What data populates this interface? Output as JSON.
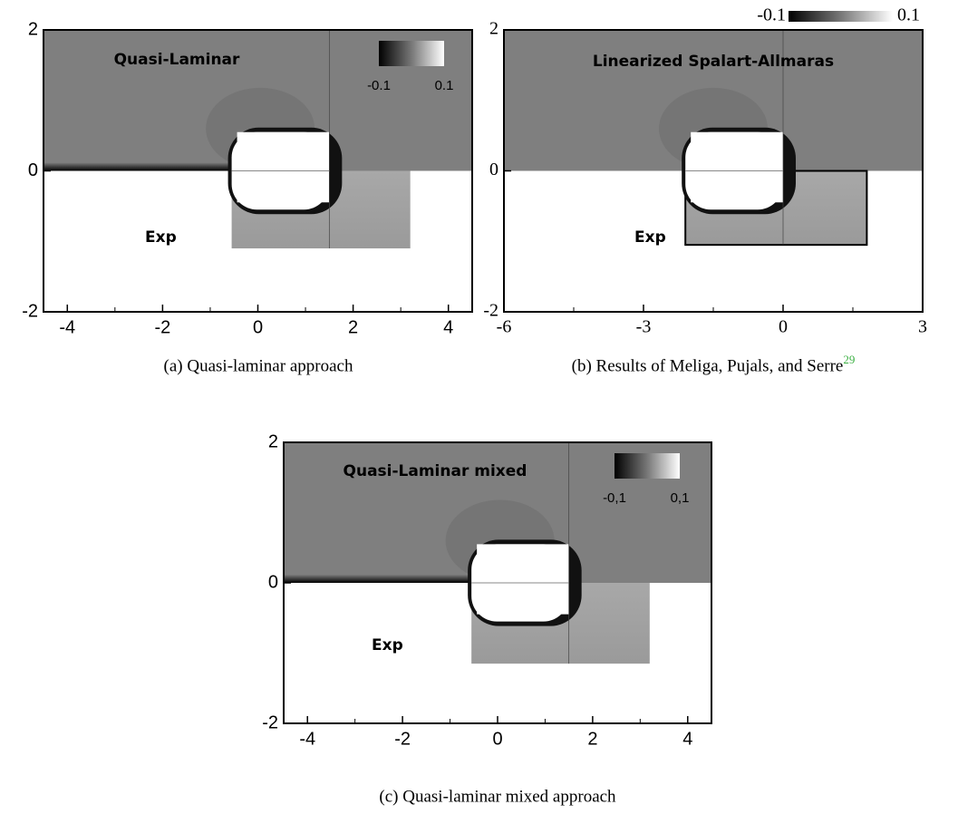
{
  "chart_data": [
    {
      "type": "contour",
      "xlim": [
        -4.5,
        4.5
      ],
      "ylim": [
        -2,
        2
      ],
      "xticks": [
        -4,
        -2,
        0,
        2,
        4
      ],
      "yticks": [
        -2,
        0,
        2
      ],
      "annotations": [
        "Quasi-Laminar",
        "Exp"
      ],
      "colorbar_ticks": [
        -0.1,
        0.1
      ],
      "caption": "(a) Quasi-laminar approach"
    },
    {
      "type": "contour",
      "xlim": [
        -6,
        3
      ],
      "ylim": [
        -2,
        2
      ],
      "xticks": [
        -6,
        -3,
        0,
        3
      ],
      "yticks": [
        -2,
        0,
        2
      ],
      "annotations": [
        "Linearized Spalart-Allmaras",
        "Exp"
      ],
      "colorbar_ticks": [
        -0.1,
        0.1
      ],
      "caption": "(b) Results of Meliga, Pujals, and Serre",
      "caption_ref": "29"
    },
    {
      "type": "contour",
      "xlim": [
        -4.5,
        4.5
      ],
      "ylim": [
        -2,
        2
      ],
      "xticks": [
        -4,
        -2,
        0,
        2,
        4
      ],
      "yticks": [
        -2,
        0,
        2
      ],
      "annotations": [
        "Quasi-Laminar mixed",
        "Exp"
      ],
      "colorbar_ticks": [
        {
          "value": -0.1,
          "label": "-0,1"
        },
        {
          "value": 0.1,
          "label": "0,1"
        }
      ],
      "caption": "(c) Quasi-laminar mixed approach"
    }
  ]
}
